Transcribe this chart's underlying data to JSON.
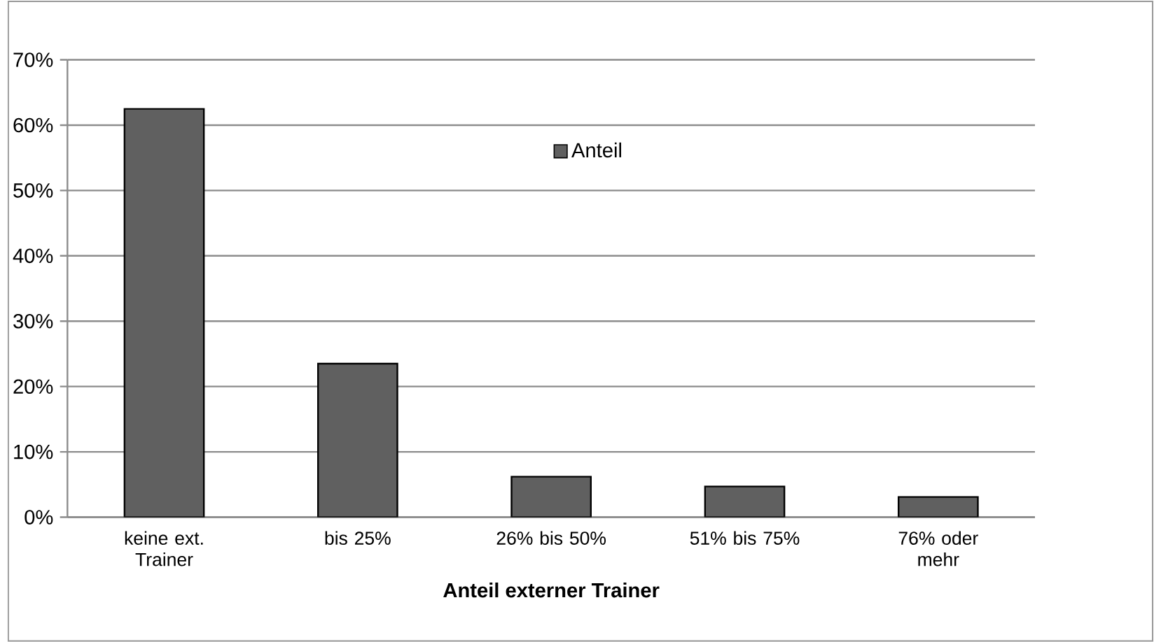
{
  "chart_data": {
    "type": "bar",
    "xlabel": "Anteil externer Trainer",
    "categories": [
      "keine ext. Trainer",
      "bis 25%",
      "26% bis 50%",
      "51% bis 75%",
      "76% oder mehr"
    ],
    "series": [
      {
        "name": "Anteil",
        "color": "#606060",
        "values": [
          62.5,
          23.5,
          6.2,
          4.7,
          3.1
        ]
      }
    ],
    "ylim": [
      0,
      70
    ],
    "yticks": [
      {
        "value": 0,
        "label": "0%"
      },
      {
        "value": 10,
        "label": "10%"
      },
      {
        "value": 20,
        "label": "20%"
      },
      {
        "value": 30,
        "label": "30%"
      },
      {
        "value": 40,
        "label": "40%"
      },
      {
        "value": 50,
        "label": "50%"
      },
      {
        "value": 60,
        "label": "60%"
      },
      {
        "value": 70,
        "label": "70%"
      }
    ],
    "grid": "y",
    "legend": "top"
  }
}
